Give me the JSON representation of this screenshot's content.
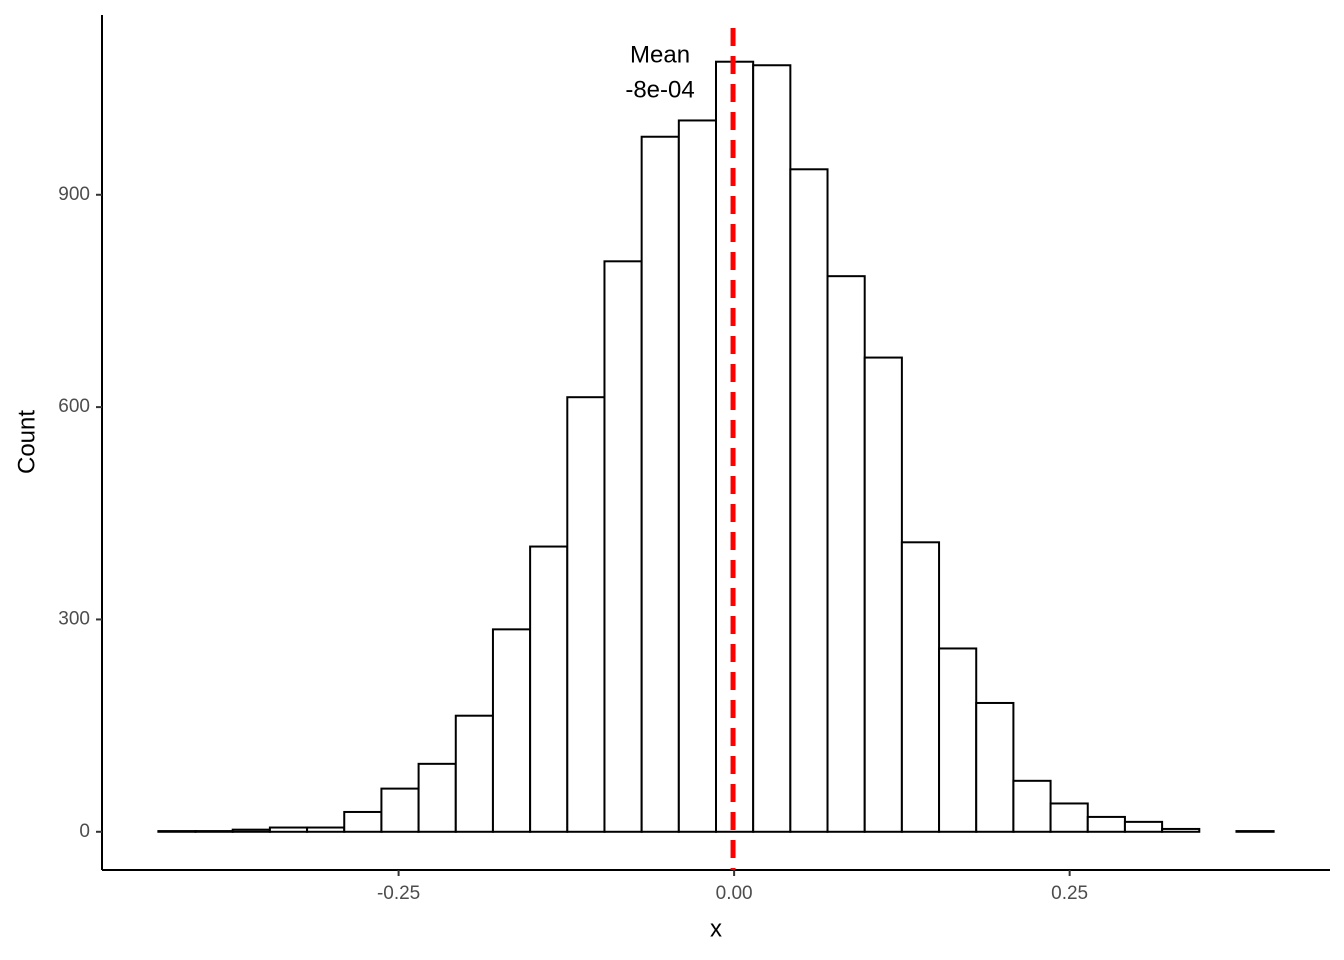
{
  "chart_data": {
    "type": "histogram",
    "xlabel": "x",
    "ylabel": "Count",
    "bins": [
      -0.429,
      -0.4013,
      -0.3736,
      -0.3459,
      -0.3182,
      -0.2905,
      -0.2628,
      -0.2351,
      -0.2074,
      -0.1797,
      -0.152,
      -0.1243,
      -0.0966,
      -0.0689,
      -0.0412,
      -0.0135,
      0.0142,
      0.0419,
      0.0696,
      0.0973,
      0.125,
      0.1527,
      0.1804,
      0.2081,
      0.2358,
      0.2635,
      0.2912,
      0.3189,
      0.3466,
      0.3743,
      0.402
    ],
    "values": [
      1,
      1,
      3,
      6,
      6,
      28,
      61,
      96,
      164,
      286,
      403,
      614,
      806,
      982,
      1005,
      1088,
      1083,
      936,
      785,
      670,
      409,
      259,
      182,
      72,
      40,
      21,
      14,
      4,
      0,
      1
    ],
    "fill": "#ffffff",
    "edgecolor": "#000000",
    "xlim": [
      -0.471,
      0.444
    ],
    "ylim": [
      -54,
      1154
    ],
    "xticks": [
      -0.25,
      {
        "value": 0,
        "label": "0.00"
      },
      0.25
    ],
    "yticks": [
      0,
      300,
      600,
      900
    ],
    "grid": false,
    "vline": {
      "x": -0.0008,
      "color": "#ff0000",
      "label": [
        "Mean",
        "-8e-04"
      ]
    }
  }
}
